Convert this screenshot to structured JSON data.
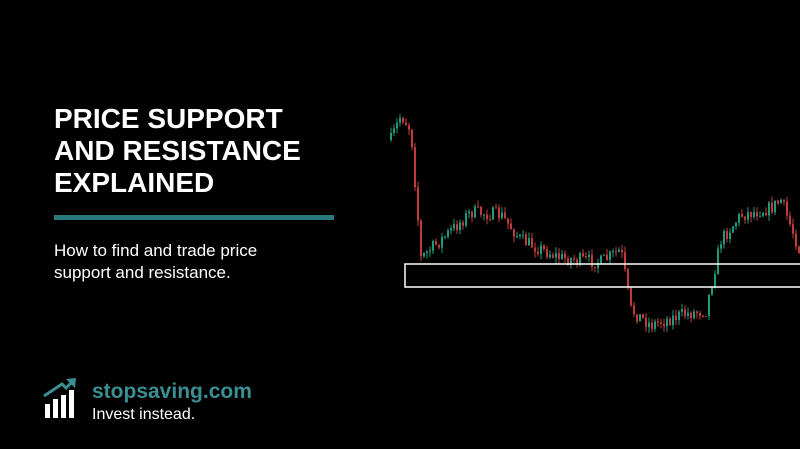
{
  "header": {
    "title_lines": [
      "PRICE SUPPORT",
      "AND RESISTANCE",
      "EXPLAINED"
    ],
    "subtitle_lines": [
      "How to find and trade price",
      "support and resistance."
    ]
  },
  "brand": {
    "name": "stopsaving.com",
    "tagline": "Invest instead."
  }
}
